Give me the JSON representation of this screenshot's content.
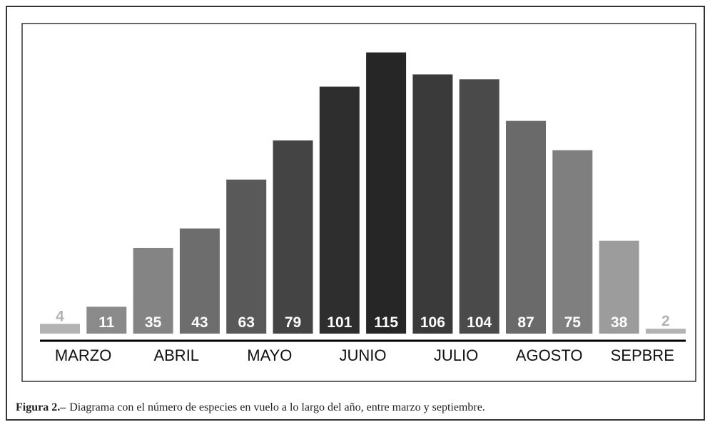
{
  "chart_data": {
    "type": "bar",
    "categories": [
      "MARZO",
      "ABRIL",
      "MAYO",
      "JUNIO",
      "JULIO",
      "AGOSTO",
      "SEPBRE"
    ],
    "values": [
      [
        4,
        11
      ],
      [
        35,
        43
      ],
      [
        63,
        79
      ],
      [
        101,
        115
      ],
      [
        106,
        104
      ],
      [
        87,
        75
      ],
      [
        38,
        2
      ]
    ],
    "colors": [
      [
        "#b3b3b3",
        "#8a8a8a"
      ],
      [
        "#848484",
        "#6d6d6d"
      ],
      [
        "#595959",
        "#444444"
      ],
      [
        "#2e2e2e",
        "#262626"
      ],
      [
        "#3a3a3a",
        "#4a4a4a"
      ],
      [
        "#6a6a6a",
        "#7f7f7f"
      ],
      [
        "#9c9c9c",
        "#b3b3b3"
      ]
    ]
  },
  "caption": {
    "label": "Figura 2.–",
    "text": "Diagrama con el número de especies en vuelo a lo largo del año, entre marzo y septiembre."
  }
}
